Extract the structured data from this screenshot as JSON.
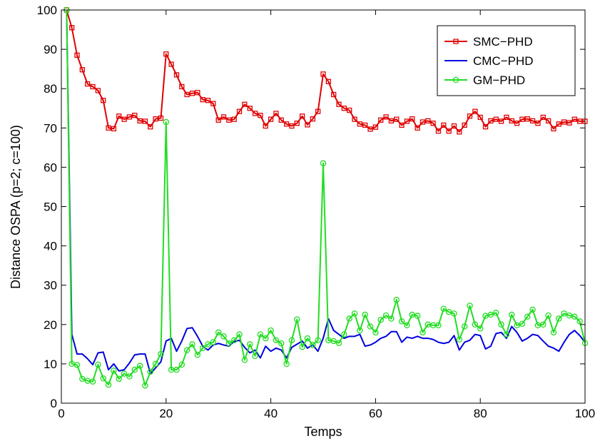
{
  "chart_data": {
    "type": "line",
    "title": "",
    "xlabel": "Temps",
    "ylabel": "Distance OSPA (p=2; c=100)",
    "xlim": [
      0,
      100
    ],
    "ylim": [
      0,
      100
    ],
    "xticks": [
      "0",
      "20",
      "40",
      "60",
      "80",
      "100"
    ],
    "yticks": [
      "0",
      "10",
      "20",
      "30",
      "40",
      "50",
      "60",
      "70",
      "80",
      "90",
      "100"
    ],
    "grid": false,
    "legend_position": "top-right",
    "x": [
      1,
      2,
      3,
      4,
      5,
      6,
      7,
      8,
      9,
      10,
      11,
      12,
      13,
      14,
      15,
      16,
      17,
      18,
      19,
      20,
      21,
      22,
      23,
      24,
      25,
      26,
      27,
      28,
      29,
      30,
      31,
      32,
      33,
      34,
      35,
      36,
      37,
      38,
      39,
      40,
      41,
      42,
      43,
      44,
      45,
      46,
      47,
      48,
      49,
      50,
      51,
      52,
      53,
      54,
      55,
      56,
      57,
      58,
      59,
      60,
      61,
      62,
      63,
      64,
      65,
      66,
      67,
      68,
      69,
      70,
      71,
      72,
      73,
      74,
      75,
      76,
      77,
      78,
      79,
      80,
      81,
      82,
      83,
      84,
      85,
      86,
      87,
      88,
      89,
      90,
      91,
      92,
      93,
      94,
      95,
      96,
      97,
      98,
      99,
      100
    ],
    "series": [
      {
        "name": "SMC−PHD",
        "color": "#e00000",
        "marker": "square",
        "values": [
          100,
          95.5,
          88.5,
          84.8,
          81.2,
          80.5,
          79.5,
          77,
          70,
          69.8,
          73,
          72.2,
          72.8,
          73.2,
          71.8,
          71.7,
          70.3,
          72.3,
          72.5,
          88.8,
          86.2,
          83.5,
          80.5,
          78.5,
          78.8,
          79,
          77.2,
          77,
          76.2,
          72,
          72.8,
          72,
          72.2,
          74.2,
          76,
          75,
          73.7,
          73.2,
          70.5,
          72.2,
          73.7,
          72,
          71,
          70.5,
          71.2,
          73,
          70.8,
          72.3,
          74.2,
          83.7,
          81.8,
          78.5,
          76,
          75,
          74.5,
          72.2,
          71,
          70.7,
          69.7,
          70.2,
          72,
          72.8,
          71.8,
          72.2,
          70.7,
          71.7,
          72.3,
          70,
          71.5,
          71.8,
          71.2,
          69.2,
          70.7,
          69.2,
          70.5,
          69,
          70.7,
          73,
          74.2,
          72.7,
          70.3,
          71.8,
          72.2,
          71.7,
          72.7,
          71.8,
          71.2,
          72.2,
          72.3,
          71.8,
          71.2,
          72.7,
          71.8,
          69.8,
          71,
          71.5,
          71.3,
          72.2,
          71.7,
          71.7
        ]
      },
      {
        "name": "CMC−PHD",
        "color": "#0000e0",
        "marker": "none",
        "values": [
          100,
          17.5,
          12.5,
          12.5,
          11.3,
          9.8,
          12.8,
          13,
          8.5,
          10,
          8.2,
          8.5,
          10.2,
          12.3,
          12.5,
          12.5,
          7.5,
          9,
          10.5,
          15.8,
          16.5,
          13.2,
          15.8,
          19,
          19.2,
          17,
          14.5,
          13.5,
          14.8,
          15.2,
          14.8,
          14.5,
          15.7,
          16,
          14.2,
          12.8,
          13.5,
          11.5,
          14.5,
          13.2,
          14,
          13.5,
          11.5,
          14.2,
          15,
          15.8,
          14,
          14.8,
          13.2,
          16.5,
          21.5,
          18.5,
          17.5,
          16.5,
          17,
          17,
          17.5,
          14.5,
          14.8,
          15.5,
          16.5,
          17,
          18.2,
          18.2,
          15.5,
          16.8,
          16.5,
          17,
          16.5,
          16.5,
          16.2,
          15.5,
          15.2,
          15.5,
          17.2,
          13.5,
          15.5,
          16,
          17.5,
          17.2,
          13.8,
          14.5,
          17.7,
          18,
          16.5,
          19.5,
          18,
          15.8,
          16.5,
          17.5,
          17.2,
          15.8,
          14.5,
          14,
          13.2,
          15.5,
          17.5,
          18.5,
          17.2,
          15.5
        ]
      },
      {
        "name": "GM−PHD",
        "color": "#22dd22",
        "marker": "circle",
        "values": [
          100,
          10,
          9.7,
          6.2,
          5.7,
          5.5,
          9.8,
          6.3,
          4.7,
          8.3,
          6.2,
          7.5,
          6.8,
          8.5,
          9.5,
          4.5,
          8,
          10,
          12.5,
          71.5,
          8.5,
          8.5,
          9.8,
          13.5,
          15,
          12.3,
          14,
          15,
          15.5,
          18,
          17,
          15.2,
          16,
          17.5,
          11,
          15,
          12,
          17.5,
          16.5,
          18.5,
          16,
          15.2,
          10,
          16,
          21.3,
          14.3,
          16.5,
          14.8,
          16,
          61,
          16,
          15.8,
          15.3,
          17.5,
          21.5,
          22.8,
          18.5,
          22.5,
          19.5,
          18,
          21.2,
          22.3,
          21.5,
          26.3,
          20.8,
          19.8,
          22.5,
          22.2,
          18,
          20,
          19.8,
          19.8,
          24,
          23.2,
          22.8,
          16.2,
          19.5,
          24.8,
          20,
          19,
          22.2,
          22.5,
          23,
          20,
          17.5,
          22.5,
          19.8,
          20.2,
          22,
          23.8,
          19.8,
          20,
          22.3,
          18,
          21.5,
          22.8,
          22.3,
          22,
          20.8,
          15.3
        ]
      }
    ]
  }
}
